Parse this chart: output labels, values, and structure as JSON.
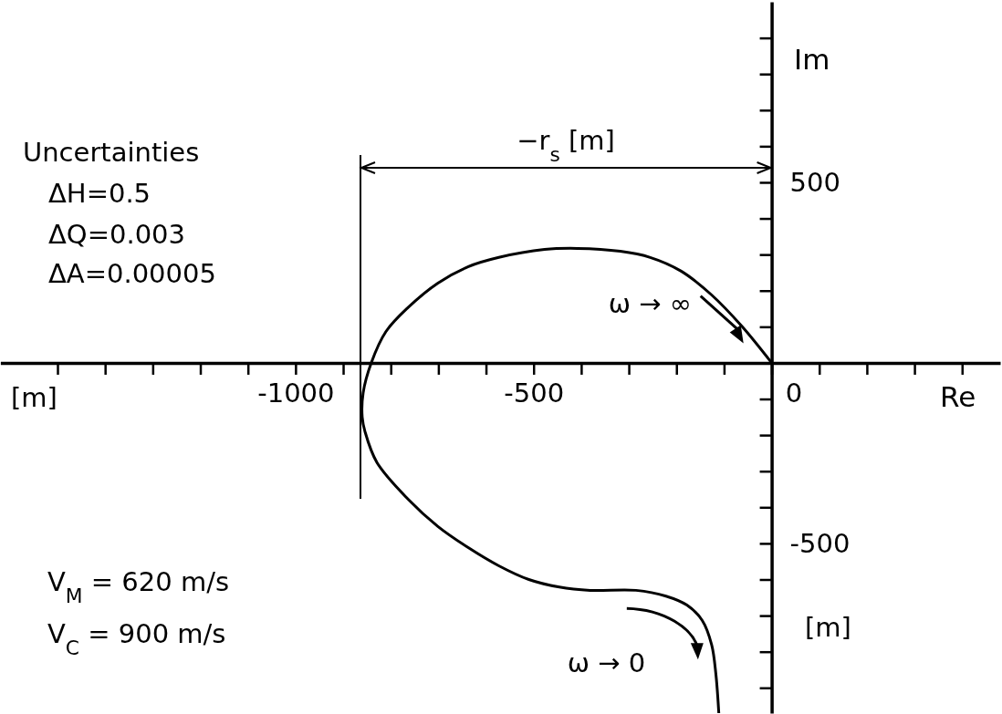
{
  "chart_data": {
    "type": "line",
    "xlabel": "Re",
    "ylabel": "Im",
    "xlim": [
      -1620,
      480
    ],
    "ylim": [
      -970,
      1000
    ],
    "xticks": [
      {
        "value": -1500,
        "label": null
      },
      {
        "value": -1400,
        "label": null
      },
      {
        "value": -1300,
        "label": null
      },
      {
        "value": -1200,
        "label": null
      },
      {
        "value": -1100,
        "label": null
      },
      -1000,
      {
        "value": -900,
        "label": null
      },
      {
        "value": -800,
        "label": null
      },
      {
        "value": -700,
        "label": null
      },
      {
        "value": -600,
        "label": null
      },
      -500,
      {
        "value": -400,
        "label": null
      },
      {
        "value": -300,
        "label": null
      },
      {
        "value": -200,
        "label": null
      },
      {
        "value": -100,
        "label": null
      },
      0,
      {
        "value": 100,
        "label": null
      },
      {
        "value": 200,
        "label": null
      },
      {
        "value": 300,
        "label": null
      },
      {
        "value": 400,
        "label": null
      }
    ],
    "yticks": [
      {
        "value": -900,
        "label": null
      },
      {
        "value": -800,
        "label": null
      },
      {
        "value": -700,
        "label": null
      },
      {
        "value": -600,
        "label": null
      },
      -500,
      {
        "value": -400,
        "label": null
      },
      {
        "value": -300,
        "label": null
      },
      {
        "value": -200,
        "label": null
      },
      {
        "value": -100,
        "label": null
      },
      {
        "value": 0,
        "label": null
      },
      {
        "value": 100,
        "label": null
      },
      {
        "value": 200,
        "label": null
      },
      {
        "value": 300,
        "label": null
      },
      {
        "value": 400,
        "label": null
      },
      500,
      {
        "value": 600,
        "label": null
      },
      {
        "value": 700,
        "label": null
      },
      {
        "value": 800,
        "label": null
      },
      {
        "value": 900,
        "label": null
      }
    ],
    "grid": false,
    "marker": "none",
    "line_style": "solid",
    "series": [
      {
        "color": "#000000",
        "x": [
          0,
          -63,
          -126,
          -190,
          -255,
          -318,
          -408,
          -477,
          -573,
          -638,
          -701,
          -764,
          -810,
          -841,
          -858,
          -860,
          -854,
          -829,
          -764,
          -701,
          -638,
          -573,
          -510,
          -446,
          -381,
          -285,
          -222,
          -178,
          -146,
          -126,
          -117,
          -111
        ],
        "values": [
          0,
          102,
          188,
          254,
          292,
          309,
          317,
          314,
          292,
          266,
          221,
          153,
          87,
          0,
          -83,
          -150,
          -191,
          -276,
          -377,
          -453,
          -511,
          -562,
          -600,
          -621,
          -630,
          -630,
          -646,
          -671,
          -713,
          -781,
          -864,
          -970
        ]
      }
    ],
    "annotations": [
      "Uncertainties",
      "ΔH=0.5",
      "ΔQ=0.003",
      "ΔA=0.00005",
      "V$_{M}$ = 620 m/s",
      "V$_{C}$ = 900 m/s",
      "−r$_{s}$ [m]",
      {
        "text": "ω → ∞",
        "x": -63,
        "y": 102
      },
      {
        "text": "ω → 0",
        "x": -126,
        "y": -781
      },
      "[m]",
      "[m]"
    ]
  }
}
